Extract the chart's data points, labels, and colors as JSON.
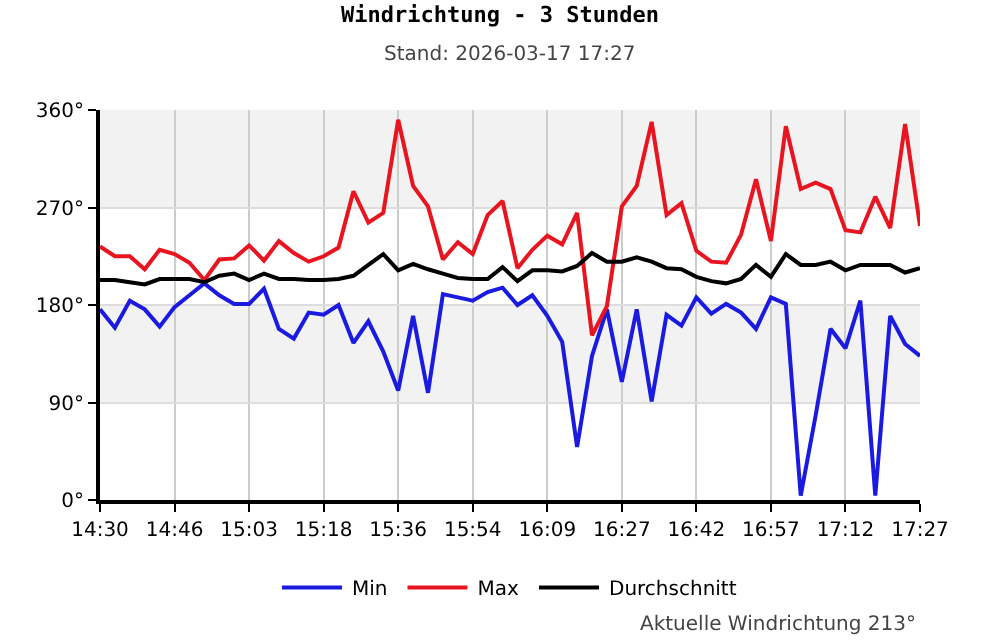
{
  "chart_data": {
    "type": "line",
    "title": "Windrichtung - 3 Stunden",
    "subtitle": "Stand: 2026-03-17 17:27",
    "categories": [
      "14:30",
      null,
      null,
      null,
      null,
      "14:46",
      null,
      null,
      null,
      null,
      "15:03",
      null,
      null,
      null,
      null,
      "15:18",
      null,
      null,
      null,
      null,
      "15:36",
      null,
      null,
      null,
      null,
      "15:54",
      null,
      null,
      null,
      null,
      "16:09",
      null,
      null,
      null,
      null,
      "16:27",
      null,
      null,
      null,
      null,
      "16:42",
      null,
      null,
      null,
      null,
      "16:57",
      null,
      null,
      null,
      null,
      "17:12",
      null,
      null,
      null,
      null,
      "17:27"
    ],
    "series": [
      {
        "name": "Min",
        "color": "#1a1ae0",
        "values": [
          176,
          159,
          184,
          176,
          160,
          178,
          189,
          200,
          189,
          181,
          181,
          195,
          158,
          149,
          173,
          171,
          180,
          145,
          165,
          137,
          101,
          170,
          99,
          190,
          187,
          184,
          192,
          196,
          180,
          189,
          170,
          146,
          49,
          133,
          176,
          109,
          176,
          91,
          171,
          161,
          187,
          172,
          181,
          173,
          158,
          187,
          181,
          4,
          78,
          158,
          140,
          184,
          4,
          170,
          144,
          133
        ]
      },
      {
        "name": "Max",
        "color": "#e81420",
        "values": [
          234,
          225,
          225,
          213,
          231,
          227,
          219,
          203,
          222,
          223,
          235,
          221,
          239,
          228,
          220,
          225,
          233,
          285,
          256,
          265,
          351,
          290,
          271,
          222,
          238,
          227,
          263,
          276,
          214,
          231,
          244,
          236,
          265,
          152,
          179,
          271,
          290,
          349,
          263,
          274,
          230,
          220,
          219,
          245,
          296,
          239,
          345,
          287,
          293,
          287,
          249,
          247,
          280,
          251,
          347,
          253
        ]
      },
      {
        "name": "Durchschnitt",
        "color": "#000000",
        "values": [
          203,
          203,
          201,
          199,
          204,
          204,
          204,
          201,
          207,
          209,
          203,
          209,
          204,
          204,
          203,
          203,
          204,
          207,
          217,
          227,
          212,
          218,
          213,
          209,
          205,
          204,
          204,
          215,
          202,
          212,
          212,
          211,
          216,
          228,
          220,
          220,
          224,
          220,
          214,
          213,
          206,
          202,
          200,
          204,
          217,
          206,
          227,
          217,
          217,
          220,
          212,
          217,
          217,
          217,
          210,
          214
        ]
      }
    ],
    "ylim": [
      0,
      360
    ],
    "yticks": [
      {
        "value": 0,
        "label": "0°"
      },
      {
        "value": 90,
        "label": "90°"
      },
      {
        "value": 180,
        "label": "180°"
      },
      {
        "value": 270,
        "label": "270°"
      },
      {
        "value": 360,
        "label": "360°"
      }
    ],
    "bands": [
      {
        "axis": "y",
        "from": 90,
        "to": 180,
        "color": "#f2f2f2"
      },
      {
        "axis": "y",
        "from": 270,
        "to": 360,
        "color": "#f2f2f2"
      }
    ],
    "grid": true,
    "legend": "bottom",
    "annotations": [
      "Aktuelle Windrichtung 213°"
    ]
  }
}
